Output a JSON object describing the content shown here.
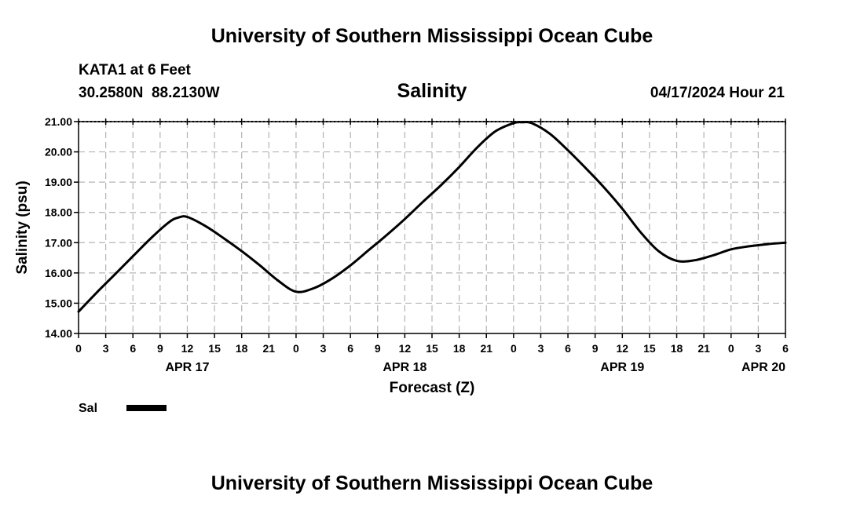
{
  "header": {
    "org_title": "University of Southern Mississippi Ocean Cube",
    "station": "KATA1 at 6 Feet",
    "coordinates": "30.2580N  88.2130W",
    "chart_title": "Salinity",
    "timestamp": "04/17/2024 Hour 21"
  },
  "footer": {
    "org_title": "University of Southern Mississippi Ocean Cube"
  },
  "legend": {
    "label": "Sal"
  },
  "chart_data": {
    "type": "line",
    "title": "Salinity",
    "xlabel": "Forecast (Z)",
    "ylabel": "Salinity (psu)",
    "ylim": [
      14.0,
      21.0
    ],
    "xlim": [
      0,
      78
    ],
    "x_unit": "hours since APR 17 00Z",
    "y_ticks": [
      "14.00",
      "15.00",
      "16.00",
      "17.00",
      "18.00",
      "19.00",
      "20.00",
      "21.00"
    ],
    "x_ticks": [
      "0",
      "3",
      "6",
      "9",
      "12",
      "15",
      "18",
      "21",
      "0",
      "3",
      "6",
      "9",
      "12",
      "15",
      "18",
      "21",
      "0",
      "3",
      "6",
      "9",
      "12",
      "15",
      "18",
      "21",
      "0",
      "3",
      "6"
    ],
    "date_labels": [
      {
        "label": "APR 17",
        "hour": 12
      },
      {
        "label": "APR 18",
        "hour": 36
      },
      {
        "label": "APR 19",
        "hour": 60
      },
      {
        "label": "APR 20",
        "hour": 78
      }
    ],
    "grid": true,
    "series": [
      {
        "name": "Sal",
        "x": [
          0,
          2,
          4,
          6,
          8,
          10,
          11,
          12,
          14,
          16,
          18,
          20,
          22,
          24,
          26,
          28,
          30,
          32,
          34,
          36,
          38,
          40,
          42,
          44,
          46,
          48,
          49,
          50,
          52,
          54,
          56,
          58,
          60,
          62,
          64,
          66,
          68,
          70,
          72,
          74,
          76,
          78
        ],
        "values": [
          14.72,
          15.35,
          15.95,
          16.55,
          17.15,
          17.68,
          17.83,
          17.85,
          17.55,
          17.15,
          16.72,
          16.25,
          15.75,
          15.38,
          15.5,
          15.82,
          16.25,
          16.75,
          17.25,
          17.78,
          18.35,
          18.9,
          19.5,
          20.15,
          20.68,
          20.95,
          20.98,
          20.95,
          20.6,
          20.05,
          19.45,
          18.82,
          18.12,
          17.35,
          16.72,
          16.4,
          16.42,
          16.58,
          16.78,
          16.88,
          16.95,
          17.0
        ]
      }
    ]
  }
}
